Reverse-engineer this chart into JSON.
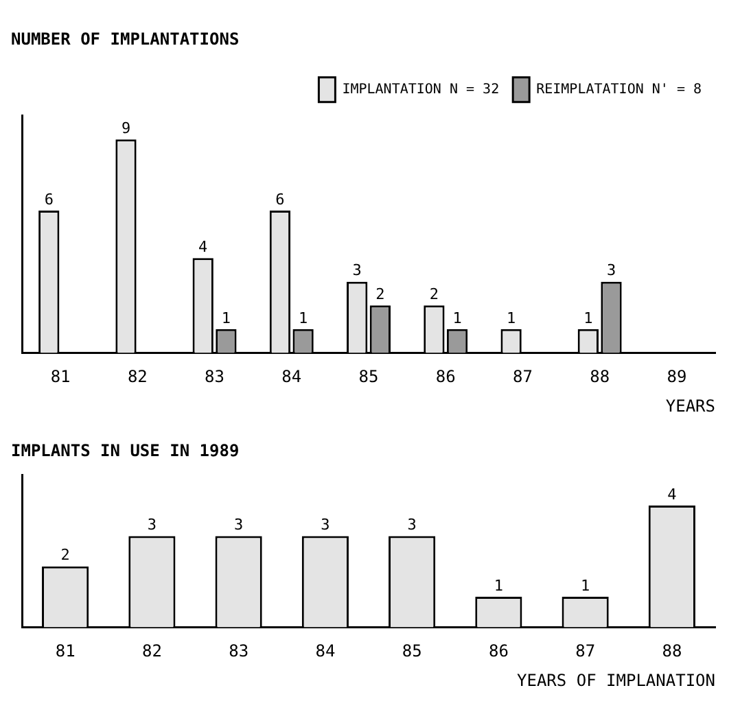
{
  "chart_data": [
    {
      "type": "bar",
      "title": "NUMBER OF IMPLANTATIONS",
      "xlabel": "YEARS",
      "categories": [
        "81",
        "82",
        "83",
        "84",
        "85",
        "86",
        "87",
        "88",
        "89"
      ],
      "series": [
        {
          "name": "IMPLANTATION N = 32",
          "color": "#e4e4e4",
          "values": [
            6,
            9,
            4,
            6,
            3,
            2,
            1,
            1,
            null
          ]
        },
        {
          "name": "REIMPLATATION N' = 8",
          "color": "#9a9a9a",
          "values": [
            null,
            null,
            1,
            1,
            2,
            1,
            null,
            3,
            null
          ]
        }
      ],
      "data_labels": true,
      "legend": "top right",
      "tick_labels": "x"
    },
    {
      "type": "bar",
      "title": "IMPLANTS IN USE IN 1989",
      "xlabel": "YEARS OF IMPLANATION",
      "categories": [
        "81",
        "82",
        "83",
        "84",
        "85",
        "86",
        "87",
        "88"
      ],
      "series": [
        {
          "color": "#e4e4e4",
          "values": [
            2,
            3,
            3,
            3,
            3,
            1,
            1,
            4
          ]
        }
      ],
      "data_labels": true,
      "tick_labels": "x"
    }
  ]
}
